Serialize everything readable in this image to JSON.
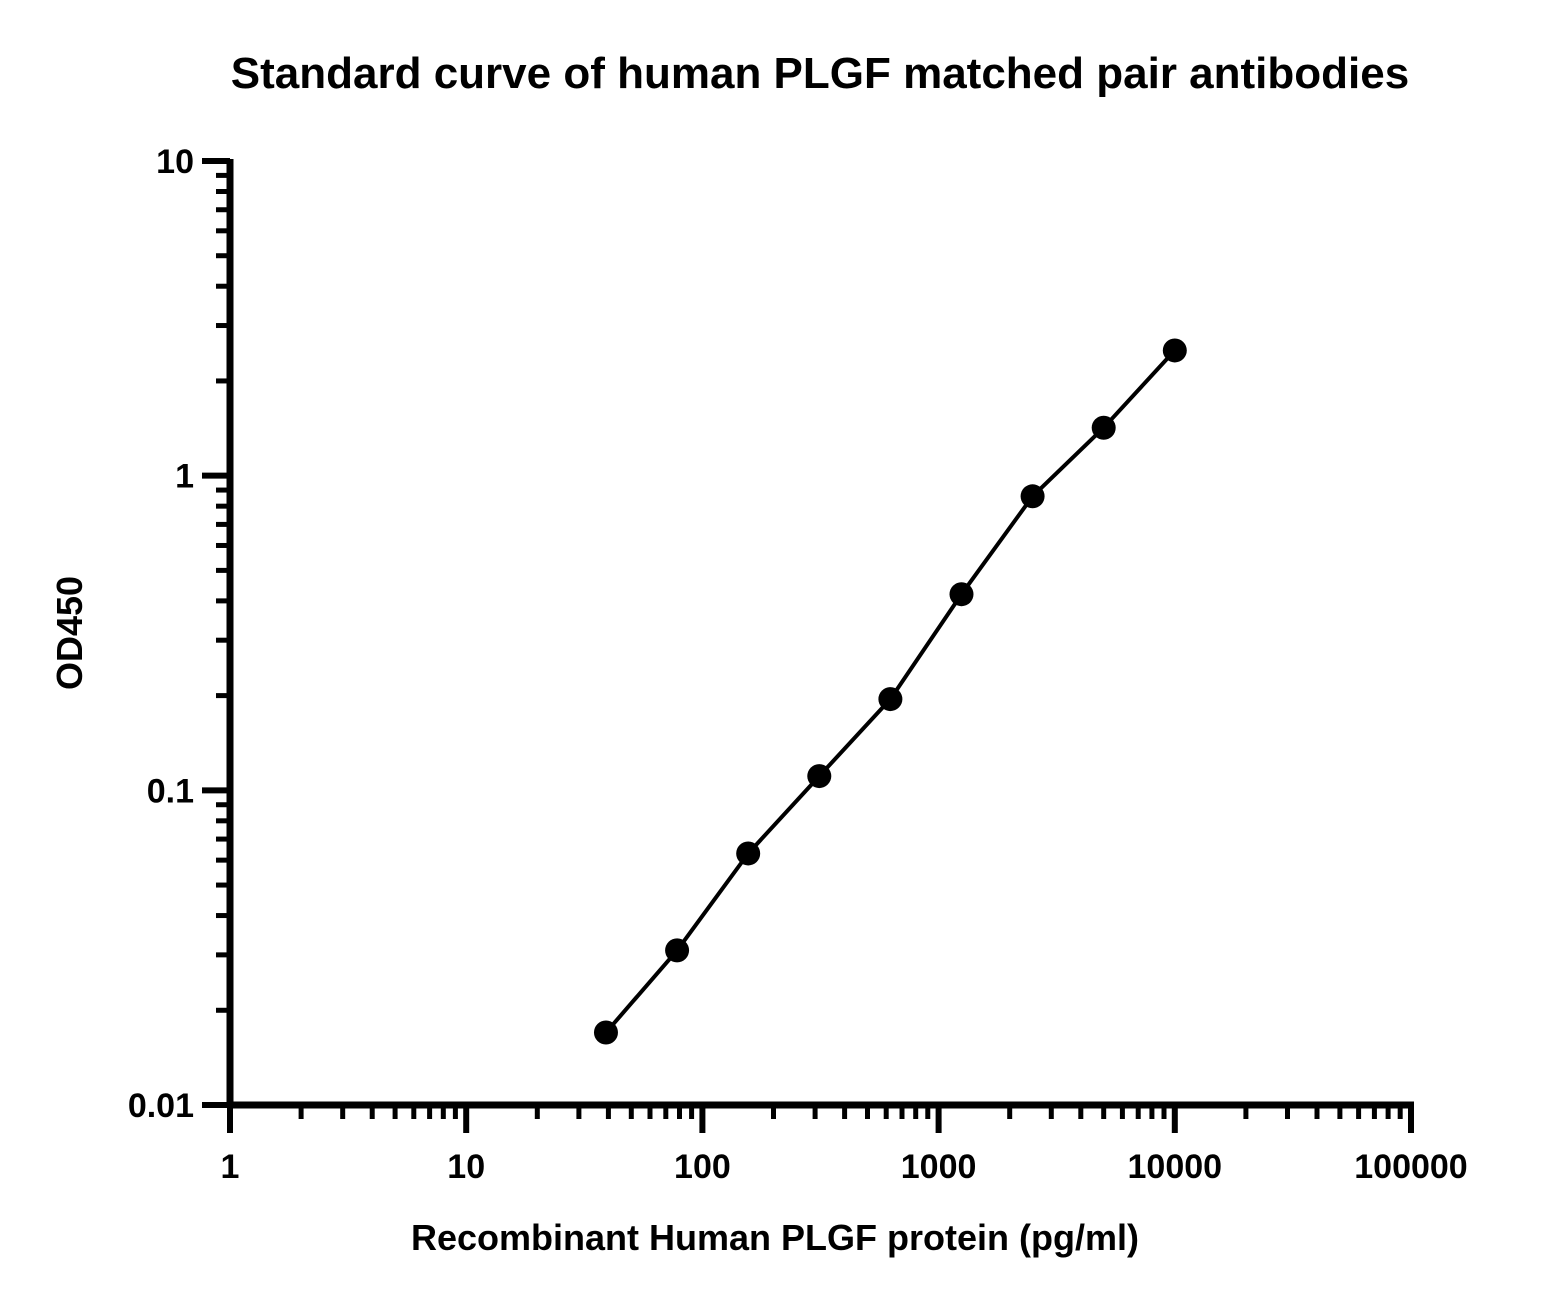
{
  "chart_data": {
    "type": "scatter",
    "title": "Standard curve of human PLGF matched pair antibodies",
    "xlabel": "Recombinant Human PLGF protein (pg/ml)",
    "ylabel": "OD450",
    "x_scale": "log",
    "y_scale": "log",
    "xlim": [
      1,
      100000
    ],
    "ylim": [
      0.01,
      10
    ],
    "x_ticks": [
      {
        "value": 1,
        "label": "1"
      },
      {
        "value": 10,
        "label": "10"
      },
      {
        "value": 100,
        "label": "100"
      },
      {
        "value": 1000,
        "label": "1000"
      },
      {
        "value": 10000,
        "label": "10000"
      },
      {
        "value": 100000,
        "label": "100000"
      }
    ],
    "y_ticks": [
      {
        "value": 0.01,
        "label": "0.01"
      },
      {
        "value": 0.1,
        "label": "0.1"
      },
      {
        "value": 1,
        "label": "1"
      },
      {
        "value": 10,
        "label": "10"
      }
    ],
    "grid": false,
    "legend": "none",
    "series": [
      {
        "x": [
          39.06,
          78.13,
          156.25,
          312.5,
          625,
          1250,
          2500,
          5000,
          10000
        ],
        "y": [
          0.017,
          0.031,
          0.063,
          0.111,
          0.195,
          0.42,
          0.86,
          1.42,
          2.5
        ],
        "color": "#000000",
        "marker": "circle",
        "fit_line": true
      }
    ]
  }
}
